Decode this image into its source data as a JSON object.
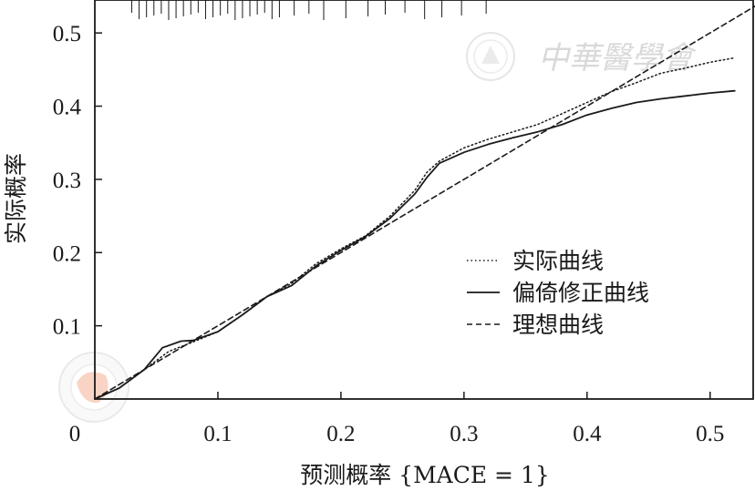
{
  "chart_data": {
    "type": "line",
    "xlabel": "预测概率 {MACE = 1}",
    "ylabel": "实际概率",
    "xlim": [
      0,
      0.535
    ],
    "ylim": [
      0,
      0.545
    ],
    "x_ticks": [
      0,
      0.1,
      0.2,
      0.3,
      0.4,
      0.5
    ],
    "x_tick_labels": [
      "0",
      "0.1",
      "0.2",
      "0.3",
      "0.4",
      "0.5"
    ],
    "y_ticks": [
      0.1,
      0.2,
      0.3,
      0.4,
      0.5
    ],
    "y_tick_labels": [
      "0.1",
      "0.2",
      "0.3",
      "0.4",
      "0.5"
    ],
    "grid": false,
    "legend_position": "center-right",
    "series": [
      {
        "name": "实际曲线",
        "style": "dotted",
        "x": [
          0.0,
          0.02,
          0.04,
          0.06,
          0.08,
          0.1,
          0.12,
          0.14,
          0.16,
          0.18,
          0.2,
          0.22,
          0.24,
          0.26,
          0.27,
          0.28,
          0.3,
          0.32,
          0.34,
          0.36,
          0.38,
          0.4,
          0.42,
          0.44,
          0.46,
          0.48,
          0.5,
          0.52
        ],
        "y": [
          0.0,
          0.015,
          0.04,
          0.065,
          0.078,
          0.092,
          0.115,
          0.14,
          0.158,
          0.185,
          0.205,
          0.223,
          0.25,
          0.285,
          0.31,
          0.325,
          0.343,
          0.355,
          0.365,
          0.375,
          0.39,
          0.405,
          0.42,
          0.432,
          0.445,
          0.452,
          0.46,
          0.466
        ]
      },
      {
        "name": "偏倚修正曲线",
        "style": "solid",
        "x": [
          0.0,
          0.02,
          0.04,
          0.055,
          0.07,
          0.08,
          0.1,
          0.12,
          0.14,
          0.16,
          0.18,
          0.2,
          0.22,
          0.24,
          0.26,
          0.27,
          0.28,
          0.3,
          0.32,
          0.34,
          0.36,
          0.38,
          0.4,
          0.42,
          0.44,
          0.46,
          0.48,
          0.5,
          0.52
        ],
        "y": [
          0.0,
          0.015,
          0.04,
          0.07,
          0.079,
          0.08,
          0.092,
          0.115,
          0.14,
          0.155,
          0.182,
          0.203,
          0.222,
          0.247,
          0.28,
          0.303,
          0.322,
          0.337,
          0.348,
          0.357,
          0.365,
          0.375,
          0.388,
          0.397,
          0.405,
          0.41,
          0.414,
          0.418,
          0.421
        ]
      },
      {
        "name": "理想曲线",
        "style": "dashed",
        "x": [
          0.0,
          0.54
        ],
        "y": [
          0.0,
          0.54
        ]
      }
    ],
    "rug_ticks_x": [
      0.03,
      0.036,
      0.042,
      0.048,
      0.054,
      0.06,
      0.066,
      0.072,
      0.078,
      0.084,
      0.09,
      0.096,
      0.102,
      0.108,
      0.114,
      0.12,
      0.126,
      0.132,
      0.138,
      0.144,
      0.15,
      0.162,
      0.174,
      0.186,
      0.204,
      0.222,
      0.236,
      0.252,
      0.268,
      0.282,
      0.298,
      0.318
    ]
  },
  "watermark": {
    "text": "中華醫學會"
  }
}
